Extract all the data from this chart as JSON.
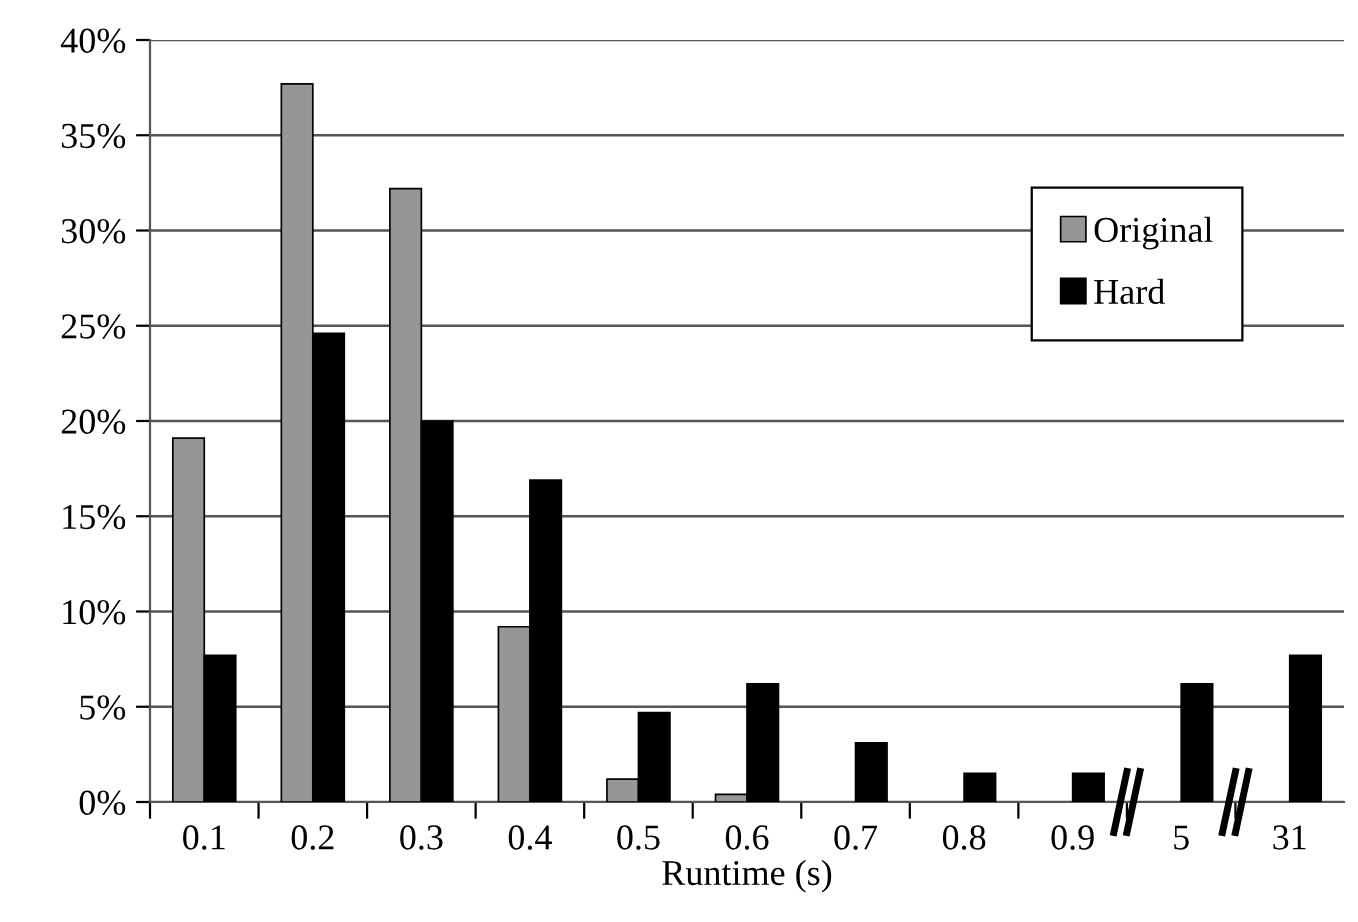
{
  "chart_data": {
    "type": "bar",
    "xlabel": "Runtime (s)",
    "categories": [
      "0.1",
      "0.2",
      "0.3",
      "0.4",
      "0.5",
      "0.6",
      "0.7",
      "0.8",
      "0.9",
      "5",
      "31"
    ],
    "series": [
      {
        "name": "Original",
        "color": "#969696",
        "values": [
          19.1,
          37.7,
          32.2,
          9.2,
          1.2,
          0.4,
          0,
          0,
          0,
          0,
          0
        ]
      },
      {
        "name": "Hard",
        "color": "#000000",
        "values": [
          7.7,
          24.6,
          20.0,
          16.9,
          4.7,
          6.2,
          3.1,
          1.5,
          1.5,
          6.2,
          7.7
        ]
      }
    ],
    "ylim": [
      0,
      40
    ],
    "yticks": [
      {
        "value": 0,
        "label": "0%"
      },
      {
        "value": 5,
        "label": "5%"
      },
      {
        "value": 10,
        "label": "10%"
      },
      {
        "value": 15,
        "label": "15%"
      },
      {
        "value": 20,
        "label": "20%"
      },
      {
        "value": 25,
        "label": "25%"
      },
      {
        "value": 30,
        "label": "30%"
      },
      {
        "value": 35,
        "label": "35%"
      },
      {
        "value": 40,
        "label": "40%"
      }
    ],
    "grid": "y",
    "legend": "top right"
  }
}
